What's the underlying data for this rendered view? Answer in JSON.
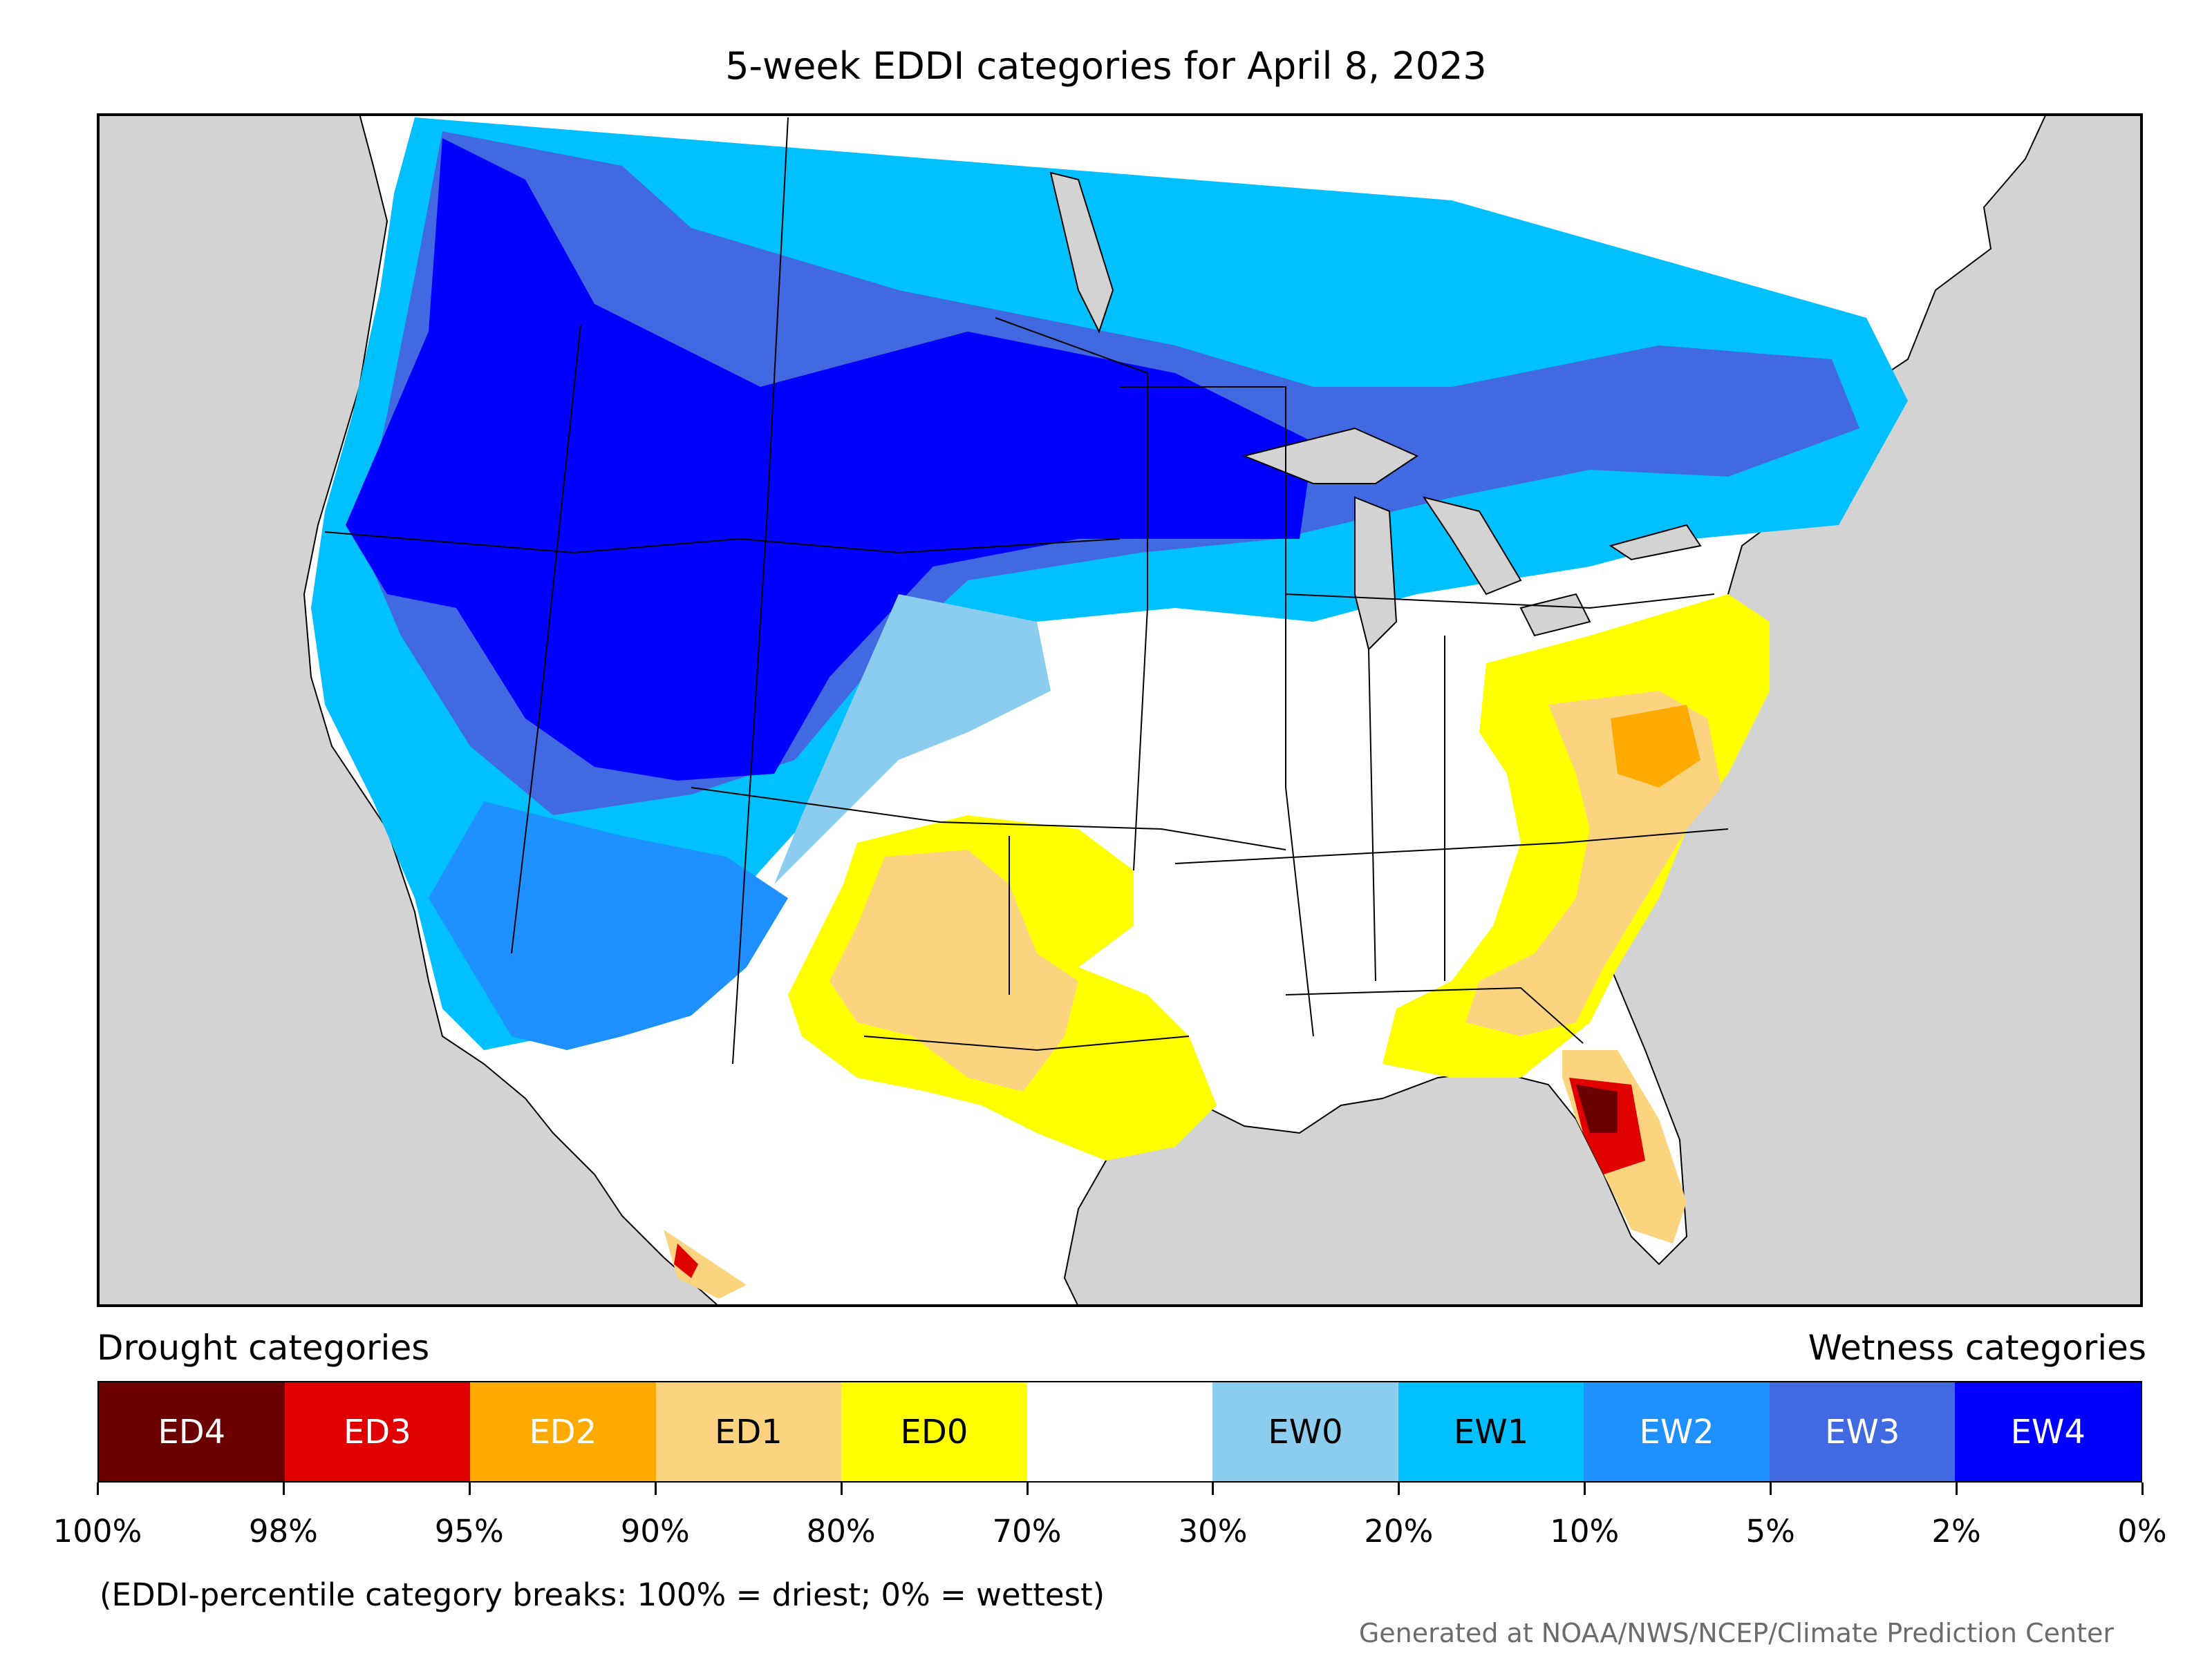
{
  "title": "5-week EDDI categories for April 8, 2023",
  "legend": {
    "left_label": "Drought categories",
    "right_label": "Wetness categories",
    "categories": [
      {
        "label": "ED4",
        "color": "#6b0000",
        "text_color": "#ffffff"
      },
      {
        "label": "ED3",
        "color": "#e00000",
        "text_color": "#ffffff"
      },
      {
        "label": "ED2",
        "color": "#ffaa00",
        "text_color": "#ffffff"
      },
      {
        "label": "ED1",
        "color": "#fcd37f",
        "text_color": "#000000"
      },
      {
        "label": "ED0",
        "color": "#ffff00",
        "text_color": "#000000"
      },
      {
        "label": "",
        "color": "#ffffff",
        "text_color": "#000000"
      },
      {
        "label": "EW0",
        "color": "#8ccdef",
        "text_color": "#000000"
      },
      {
        "label": "EW1",
        "color": "#00c0ff",
        "text_color": "#000000"
      },
      {
        "label": "EW2",
        "color": "#1e90ff",
        "text_color": "#ffffff"
      },
      {
        "label": "EW3",
        "color": "#4169e1",
        "text_color": "#ffffff"
      },
      {
        "label": "EW4",
        "color": "#0000ff",
        "text_color": "#ffffff"
      }
    ],
    "breaks": [
      "100%",
      "98%",
      "95%",
      "90%",
      "80%",
      "70%",
      "30%",
      "20%",
      "10%",
      "5%",
      "2%",
      "0%"
    ]
  },
  "note": "(EDDI-percentile category breaks: 100% = driest; 0% = wettest)",
  "credit": "Generated at NOAA/NWS/NCEP/Climate Prediction Center",
  "map": {
    "ocean_color": "#d3d3d3",
    "land_color": "#ffffff"
  }
}
